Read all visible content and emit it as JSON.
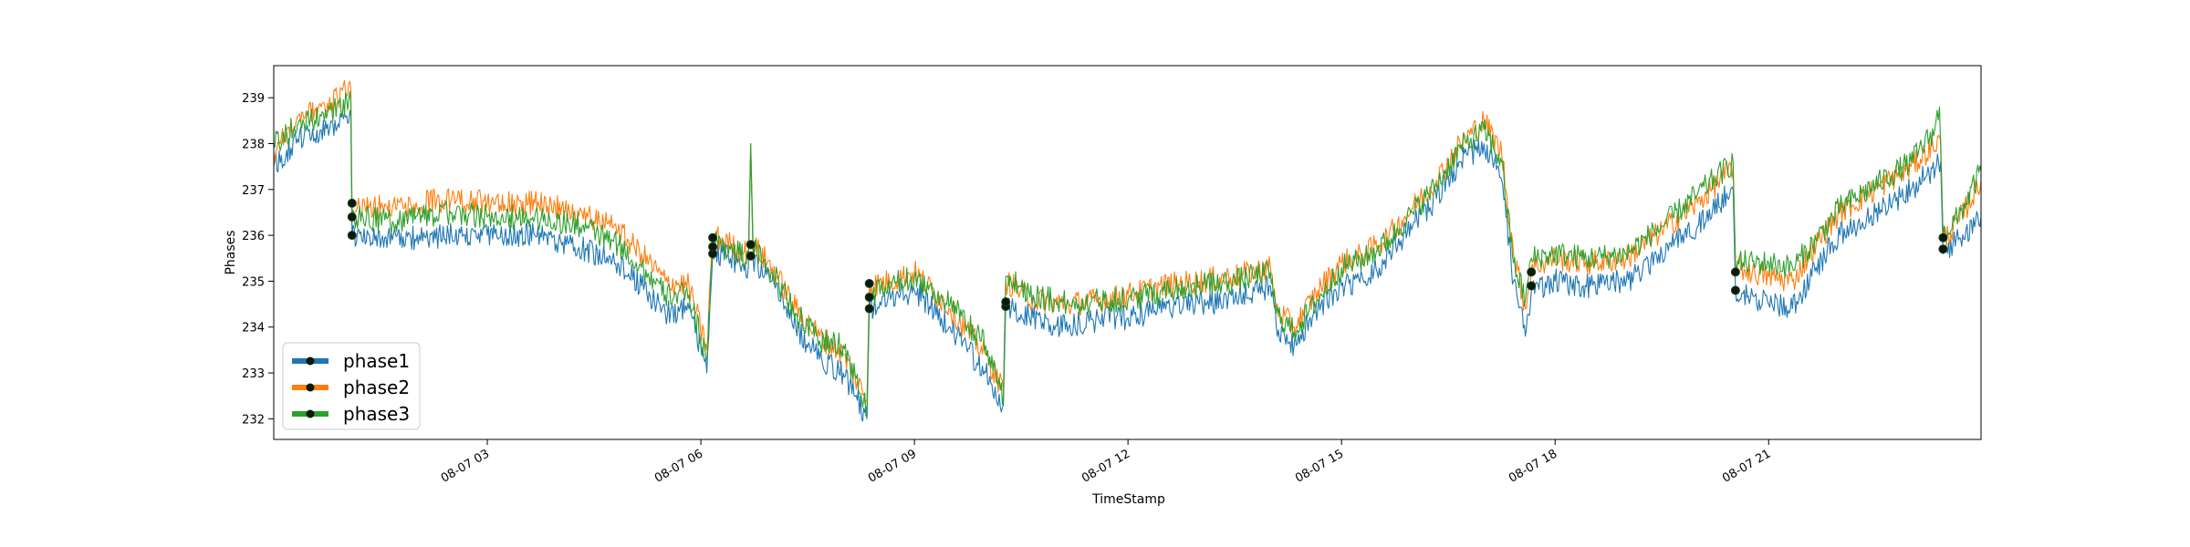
{
  "chart_data": {
    "type": "line",
    "title": "",
    "xlabel": "TimeStamp",
    "ylabel": "Phases",
    "ylim": [
      231.55,
      239.7
    ],
    "xlim": [
      "2022-08-07 00:00",
      "2022-08-07 23:59"
    ],
    "grid": false,
    "legend_position": "lower-left",
    "x_ticks": [
      {
        "time": "2022-08-07 03:00",
        "label": "08-07 03"
      },
      {
        "time": "2022-08-07 06:00",
        "label": "08-07 06"
      },
      {
        "time": "2022-08-07 09:00",
        "label": "08-07 09"
      },
      {
        "time": "2022-08-07 12:00",
        "label": "08-07 12"
      },
      {
        "time": "2022-08-07 15:00",
        "label": "08-07 15"
      },
      {
        "time": "2022-08-07 18:00",
        "label": "08-07 18"
      },
      {
        "time": "2022-08-07 21:00",
        "label": "08-07 21"
      }
    ],
    "y_ticks": [
      232,
      233,
      234,
      235,
      236,
      237,
      238,
      239
    ],
    "series": [
      {
        "name": "phase1",
        "color": "#1f77b4",
        "points": [
          [
            "2022-08-07 00:00",
            237.5
          ],
          [
            "2022-08-07 00:20",
            238.1
          ],
          [
            "2022-08-07 00:40",
            238.3
          ],
          [
            "2022-08-07 01:05",
            238.6
          ],
          [
            "2022-08-07 01:06",
            236.0
          ],
          [
            "2022-08-07 01:40",
            235.9
          ],
          [
            "2022-08-07 02:30",
            236.0
          ],
          [
            "2022-08-07 03:00",
            236.0
          ],
          [
            "2022-08-07 03:40",
            236.0
          ],
          [
            "2022-08-07 04:20",
            235.7
          ],
          [
            "2022-08-07 04:50",
            235.4
          ],
          [
            "2022-08-07 05:10",
            234.9
          ],
          [
            "2022-08-07 05:30",
            234.3
          ],
          [
            "2022-08-07 05:50",
            234.4
          ],
          [
            "2022-08-07 06:05",
            233.0
          ],
          [
            "2022-08-07 06:10",
            235.6
          ],
          [
            "2022-08-07 06:25",
            235.5
          ],
          [
            "2022-08-07 06:40",
            235.3
          ],
          [
            "2022-08-07 06:42",
            237.9
          ],
          [
            "2022-08-07 06:44",
            235.5
          ],
          [
            "2022-08-07 07:00",
            235.0
          ],
          [
            "2022-08-07 07:20",
            234.0
          ],
          [
            "2022-08-07 07:40",
            233.3
          ],
          [
            "2022-08-07 08:00",
            233.0
          ],
          [
            "2022-08-07 08:20",
            232.0
          ],
          [
            "2022-08-07 08:22",
            234.4
          ],
          [
            "2022-08-07 08:40",
            234.6
          ],
          [
            "2022-08-07 09:00",
            234.8
          ],
          [
            "2022-08-07 09:30",
            234.0
          ],
          [
            "2022-08-07 10:00",
            233.0
          ],
          [
            "2022-08-07 10:15",
            232.3
          ],
          [
            "2022-08-07 10:17",
            234.5
          ],
          [
            "2022-08-07 10:40",
            234.2
          ],
          [
            "2022-08-07 11:10",
            234.0
          ],
          [
            "2022-08-07 11:40",
            234.2
          ],
          [
            "2022-08-07 12:00",
            234.2
          ],
          [
            "2022-08-07 12:30",
            234.4
          ],
          [
            "2022-08-07 13:00",
            234.5
          ],
          [
            "2022-08-07 13:30",
            234.6
          ],
          [
            "2022-08-07 14:00",
            234.9
          ],
          [
            "2022-08-07 14:05",
            234.0
          ],
          [
            "2022-08-07 14:20",
            233.6
          ],
          [
            "2022-08-07 14:40",
            234.4
          ],
          [
            "2022-08-07 15:00",
            234.9
          ],
          [
            "2022-08-07 15:20",
            235.0
          ],
          [
            "2022-08-07 15:40",
            235.6
          ],
          [
            "2022-08-07 16:00",
            236.2
          ],
          [
            "2022-08-07 16:20",
            236.8
          ],
          [
            "2022-08-07 16:40",
            237.6
          ],
          [
            "2022-08-07 17:00",
            238.0
          ],
          [
            "2022-08-07 17:15",
            237.2
          ],
          [
            "2022-08-07 17:25",
            235.0
          ],
          [
            "2022-08-07 17:35",
            233.8
          ],
          [
            "2022-08-07 17:40",
            234.8
          ],
          [
            "2022-08-07 18:00",
            235.0
          ],
          [
            "2022-08-07 18:30",
            234.9
          ],
          [
            "2022-08-07 19:00",
            235.0
          ],
          [
            "2022-08-07 19:30",
            235.6
          ],
          [
            "2022-08-07 20:00",
            236.2
          ],
          [
            "2022-08-07 20:30",
            237.0
          ],
          [
            "2022-08-07 20:32",
            234.8
          ],
          [
            "2022-08-07 21:00",
            234.5
          ],
          [
            "2022-08-07 21:20",
            234.4
          ],
          [
            "2022-08-07 21:40",
            235.3
          ],
          [
            "2022-08-07 22:00",
            236.0
          ],
          [
            "2022-08-07 22:30",
            236.5
          ],
          [
            "2022-08-07 23:00",
            237.0
          ],
          [
            "2022-08-07 23:25",
            237.6
          ],
          [
            "2022-08-07 23:27",
            235.6
          ],
          [
            "2022-08-07 23:40",
            235.9
          ],
          [
            "2022-08-07 23:59",
            236.4
          ]
        ]
      },
      {
        "name": "phase2",
        "color": "#ff7f0e",
        "points": [
          [
            "2022-08-07 00:00",
            237.8
          ],
          [
            "2022-08-07 00:20",
            238.6
          ],
          [
            "2022-08-07 00:40",
            238.8
          ],
          [
            "2022-08-07 01:05",
            239.2
          ],
          [
            "2022-08-07 01:06",
            236.6
          ],
          [
            "2022-08-07 01:40",
            236.6
          ],
          [
            "2022-08-07 02:30",
            236.8
          ],
          [
            "2022-08-07 03:00",
            236.7
          ],
          [
            "2022-08-07 03:40",
            236.7
          ],
          [
            "2022-08-07 04:20",
            236.5
          ],
          [
            "2022-08-07 04:50",
            236.1
          ],
          [
            "2022-08-07 05:10",
            235.6
          ],
          [
            "2022-08-07 05:30",
            235.0
          ],
          [
            "2022-08-07 05:50",
            234.9
          ],
          [
            "2022-08-07 06:05",
            233.5
          ],
          [
            "2022-08-07 06:10",
            236.0
          ],
          [
            "2022-08-07 06:25",
            235.8
          ],
          [
            "2022-08-07 06:40",
            235.6
          ],
          [
            "2022-08-07 06:42",
            238.0
          ],
          [
            "2022-08-07 06:44",
            235.8
          ],
          [
            "2022-08-07 07:00",
            235.3
          ],
          [
            "2022-08-07 07:20",
            234.4
          ],
          [
            "2022-08-07 07:40",
            233.8
          ],
          [
            "2022-08-07 08:00",
            233.4
          ],
          [
            "2022-08-07 08:20",
            232.4
          ],
          [
            "2022-08-07 08:22",
            234.9
          ],
          [
            "2022-08-07 08:40",
            235.0
          ],
          [
            "2022-08-07 09:00",
            235.2
          ],
          [
            "2022-08-07 09:30",
            234.4
          ],
          [
            "2022-08-07 10:00",
            233.4
          ],
          [
            "2022-08-07 10:15",
            232.6
          ],
          [
            "2022-08-07 10:17",
            235.0
          ],
          [
            "2022-08-07 10:40",
            234.6
          ],
          [
            "2022-08-07 11:10",
            234.5
          ],
          [
            "2022-08-07 11:40",
            234.6
          ],
          [
            "2022-08-07 12:00",
            234.7
          ],
          [
            "2022-08-07 12:30",
            234.9
          ],
          [
            "2022-08-07 13:00",
            235.0
          ],
          [
            "2022-08-07 13:30",
            235.1
          ],
          [
            "2022-08-07 14:00",
            235.3
          ],
          [
            "2022-08-07 14:05",
            234.4
          ],
          [
            "2022-08-07 14:20",
            234.0
          ],
          [
            "2022-08-07 14:40",
            234.8
          ],
          [
            "2022-08-07 15:00",
            235.4
          ],
          [
            "2022-08-07 15:20",
            235.6
          ],
          [
            "2022-08-07 15:40",
            236.0
          ],
          [
            "2022-08-07 16:00",
            236.6
          ],
          [
            "2022-08-07 16:20",
            237.2
          ],
          [
            "2022-08-07 16:40",
            238.0
          ],
          [
            "2022-08-07 17:00",
            238.5
          ],
          [
            "2022-08-07 17:15",
            237.8
          ],
          [
            "2022-08-07 17:25",
            235.6
          ],
          [
            "2022-08-07 17:35",
            234.4
          ],
          [
            "2022-08-07 17:40",
            235.3
          ],
          [
            "2022-08-07 18:00",
            235.5
          ],
          [
            "2022-08-07 18:30",
            235.4
          ],
          [
            "2022-08-07 19:00",
            235.5
          ],
          [
            "2022-08-07 19:30",
            236.1
          ],
          [
            "2022-08-07 20:00",
            236.7
          ],
          [
            "2022-08-07 20:30",
            237.5
          ],
          [
            "2022-08-07 20:32",
            235.3
          ],
          [
            "2022-08-07 21:00",
            235.1
          ],
          [
            "2022-08-07 21:20",
            235.0
          ],
          [
            "2022-08-07 21:40",
            235.8
          ],
          [
            "2022-08-07 22:00",
            236.5
          ],
          [
            "2022-08-07 22:30",
            237.0
          ],
          [
            "2022-08-07 23:00",
            237.5
          ],
          [
            "2022-08-07 23:25",
            238.1
          ],
          [
            "2022-08-07 23:27",
            235.9
          ],
          [
            "2022-08-07 23:40",
            236.3
          ],
          [
            "2022-08-07 23:59",
            237.2
          ]
        ]
      },
      {
        "name": "phase3",
        "color": "#2ca02c",
        "points": [
          [
            "2022-08-07 00:00",
            238.0
          ],
          [
            "2022-08-07 00:20",
            238.4
          ],
          [
            "2022-08-07 00:40",
            238.6
          ],
          [
            "2022-08-07 01:05",
            238.9
          ],
          [
            "2022-08-07 01:06",
            236.4
          ],
          [
            "2022-08-07 01:40",
            236.3
          ],
          [
            "2022-08-07 02:30",
            236.5
          ],
          [
            "2022-08-07 03:00",
            236.4
          ],
          [
            "2022-08-07 03:40",
            236.4
          ],
          [
            "2022-08-07 04:20",
            236.2
          ],
          [
            "2022-08-07 04:50",
            235.8
          ],
          [
            "2022-08-07 05:10",
            235.3
          ],
          [
            "2022-08-07 05:30",
            234.7
          ],
          [
            "2022-08-07 05:50",
            234.7
          ],
          [
            "2022-08-07 06:05",
            233.3
          ],
          [
            "2022-08-07 06:10",
            235.9
          ],
          [
            "2022-08-07 06:25",
            235.7
          ],
          [
            "2022-08-07 06:40",
            235.5
          ],
          [
            "2022-08-07 06:42",
            238.0
          ],
          [
            "2022-08-07 06:44",
            235.7
          ],
          [
            "2022-08-07 07:00",
            235.2
          ],
          [
            "2022-08-07 07:20",
            234.3
          ],
          [
            "2022-08-07 07:40",
            233.7
          ],
          [
            "2022-08-07 08:00",
            233.6
          ],
          [
            "2022-08-07 08:20",
            232.2
          ],
          [
            "2022-08-07 08:22",
            234.7
          ],
          [
            "2022-08-07 08:40",
            234.9
          ],
          [
            "2022-08-07 09:00",
            235.1
          ],
          [
            "2022-08-07 09:30",
            234.5
          ],
          [
            "2022-08-07 10:00",
            233.6
          ],
          [
            "2022-08-07 10:15",
            232.5
          ],
          [
            "2022-08-07 10:17",
            235.1
          ],
          [
            "2022-08-07 10:40",
            234.7
          ],
          [
            "2022-08-07 11:10",
            234.5
          ],
          [
            "2022-08-07 11:40",
            234.6
          ],
          [
            "2022-08-07 12:00",
            234.6
          ],
          [
            "2022-08-07 12:30",
            234.8
          ],
          [
            "2022-08-07 13:00",
            234.9
          ],
          [
            "2022-08-07 13:30",
            235.0
          ],
          [
            "2022-08-07 14:00",
            235.2
          ],
          [
            "2022-08-07 14:05",
            234.3
          ],
          [
            "2022-08-07 14:20",
            233.9
          ],
          [
            "2022-08-07 14:40",
            234.6
          ],
          [
            "2022-08-07 15:00",
            235.3
          ],
          [
            "2022-08-07 15:20",
            235.5
          ],
          [
            "2022-08-07 15:40",
            235.9
          ],
          [
            "2022-08-07 16:00",
            236.5
          ],
          [
            "2022-08-07 16:20",
            237.1
          ],
          [
            "2022-08-07 16:40",
            237.9
          ],
          [
            "2022-08-07 17:00",
            238.3
          ],
          [
            "2022-08-07 17:15",
            237.6
          ],
          [
            "2022-08-07 17:25",
            235.4
          ],
          [
            "2022-08-07 17:35",
            234.6
          ],
          [
            "2022-08-07 17:40",
            235.5
          ],
          [
            "2022-08-07 18:00",
            235.6
          ],
          [
            "2022-08-07 18:30",
            235.5
          ],
          [
            "2022-08-07 19:00",
            235.6
          ],
          [
            "2022-08-07 19:30",
            236.2
          ],
          [
            "2022-08-07 20:00",
            236.9
          ],
          [
            "2022-08-07 20:30",
            237.6
          ],
          [
            "2022-08-07 20:32",
            235.4
          ],
          [
            "2022-08-07 21:00",
            235.4
          ],
          [
            "2022-08-07 21:20",
            235.3
          ],
          [
            "2022-08-07 21:40",
            235.9
          ],
          [
            "2022-08-07 22:00",
            236.6
          ],
          [
            "2022-08-07 22:30",
            237.1
          ],
          [
            "2022-08-07 23:00",
            237.6
          ],
          [
            "2022-08-07 23:20",
            238.3
          ],
          [
            "2022-08-07 23:24",
            238.8
          ],
          [
            "2022-08-07 23:27",
            236.0
          ],
          [
            "2022-08-07 23:40",
            236.4
          ],
          [
            "2022-08-07 23:59",
            237.4
          ]
        ]
      }
    ],
    "event_markers": [
      {
        "time": "2022-08-07 01:06",
        "values": [
          236.0,
          236.4,
          236.7
        ]
      },
      {
        "time": "2022-08-07 06:10",
        "values": [
          235.6,
          235.75,
          235.95
        ]
      },
      {
        "time": "2022-08-07 06:42",
        "values": [
          235.55,
          235.8
        ]
      },
      {
        "time": "2022-08-07 08:22",
        "values": [
          234.4,
          234.65,
          234.95
        ]
      },
      {
        "time": "2022-08-07 10:17",
        "values": [
          234.45,
          234.55
        ]
      },
      {
        "time": "2022-08-07 17:40",
        "values": [
          234.9,
          235.2
        ]
      },
      {
        "time": "2022-08-07 20:32",
        "values": [
          234.8,
          235.2
        ]
      },
      {
        "time": "2022-08-07 23:27",
        "values": [
          235.7,
          235.95
        ]
      }
    ]
  }
}
